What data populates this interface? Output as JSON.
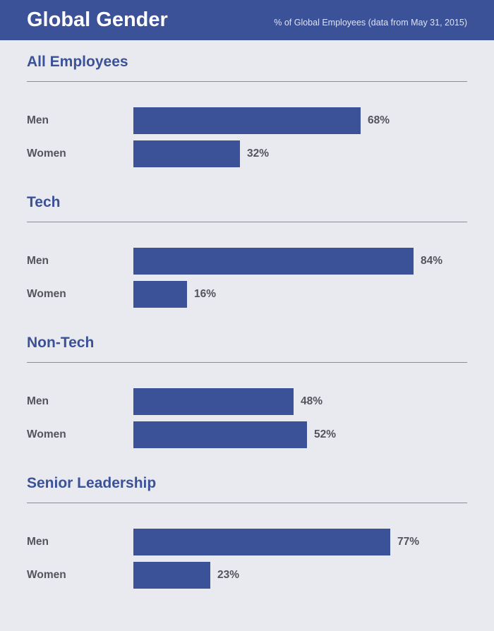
{
  "header": {
    "title": "Global Gender",
    "subtitle": "% of Global Employees (data from May 31, 2015)"
  },
  "colors": {
    "bar": "#3b5198",
    "header_bg": "#3b5198",
    "background": "#e9eaef"
  },
  "chart_data": {
    "type": "bar",
    "orientation": "horizontal",
    "title": "Global Gender",
    "subtitle": "% of Global Employees (data from May 31, 2015)",
    "unit": "%",
    "xlim": [
      0,
      100
    ],
    "groups": [
      {
        "title": "All Employees",
        "categories": [
          "Men",
          "Women"
        ],
        "values": [
          68,
          32
        ],
        "labels": [
          "68%",
          "32%"
        ]
      },
      {
        "title": "Tech",
        "categories": [
          "Men",
          "Women"
        ],
        "values": [
          84,
          16
        ],
        "labels": [
          "84%",
          "16%"
        ]
      },
      {
        "title": "Non-Tech",
        "categories": [
          "Men",
          "Women"
        ],
        "values": [
          48,
          52
        ],
        "labels": [
          "48%",
          "52%"
        ]
      },
      {
        "title": "Senior Leadership",
        "categories": [
          "Men",
          "Women"
        ],
        "values": [
          77,
          23
        ],
        "labels": [
          "77%",
          "23%"
        ]
      }
    ]
  }
}
